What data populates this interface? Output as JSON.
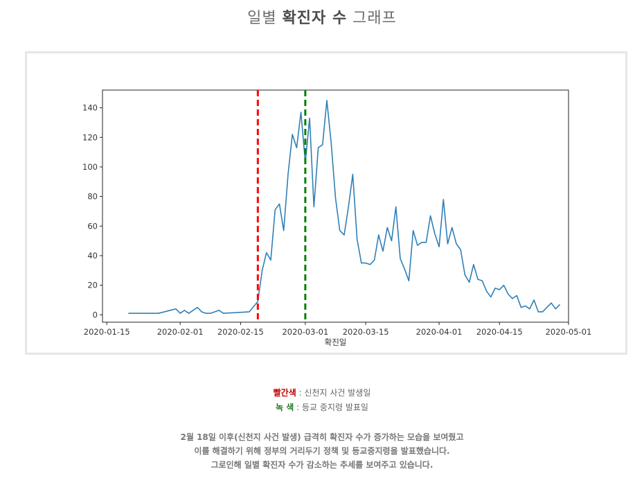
{
  "title": {
    "part1": "일별 ",
    "bold": "확진자 수",
    "part2": " 그래프"
  },
  "legend": {
    "red_label": "빨간색",
    "red_sep": " : ",
    "red_text": "신천지 사건 발생일",
    "green_label": "녹 색",
    "green_sep": " : ",
    "green_text": "등교 중지령 발표일"
  },
  "description": [
    "2월 18일 이후(신천지 사건 발생) 급격히 확진자 수가 증가하는 모습을 보여줬고",
    "이를 해결하기 위해 정부의 거리두기 정책 및 등교중지령을 발표했습니다.",
    "그로인해 일별 확진자 수가 감소하는 추세를 보여주고 있습니다."
  ],
  "chart_data": {
    "type": "line",
    "xlabel": "확진일",
    "ylabel": "",
    "xlim": [
      "2020-01-14",
      "2020-05-01"
    ],
    "ylim": [
      -5,
      152
    ],
    "xticks": [
      "2020-01-15",
      "2020-02-01",
      "2020-02-15",
      "2020-03-01",
      "2020-03-15",
      "2020-04-01",
      "2020-04-15",
      "2020-05-01"
    ],
    "yticks": [
      0,
      20,
      40,
      60,
      80,
      100,
      120,
      140
    ],
    "line_color": "#2e7fb6",
    "grid": false,
    "series": [
      {
        "x": [
          "2020-01-20",
          "2020-01-27",
          "2020-01-31",
          "2020-02-01",
          "2020-02-02",
          "2020-02-03",
          "2020-02-05",
          "2020-02-06",
          "2020-02-07",
          "2020-02-08",
          "2020-02-10",
          "2020-02-11",
          "2020-02-17",
          "2020-02-19",
          "2020-02-20",
          "2020-02-21",
          "2020-02-22",
          "2020-02-23",
          "2020-02-24",
          "2020-02-25",
          "2020-02-26",
          "2020-02-27",
          "2020-02-28",
          "2020-02-29",
          "2020-03-01",
          "2020-03-02",
          "2020-03-03",
          "2020-03-04",
          "2020-03-05",
          "2020-03-06",
          "2020-03-07",
          "2020-03-08",
          "2020-03-09",
          "2020-03-10",
          "2020-03-11",
          "2020-03-12",
          "2020-03-13",
          "2020-03-14",
          "2020-03-15",
          "2020-03-16",
          "2020-03-17",
          "2020-03-18",
          "2020-03-19",
          "2020-03-20",
          "2020-03-21",
          "2020-03-22",
          "2020-03-23",
          "2020-03-24",
          "2020-03-25",
          "2020-03-26",
          "2020-03-27",
          "2020-03-28",
          "2020-03-29",
          "2020-03-30",
          "2020-03-31",
          "2020-04-01",
          "2020-04-02",
          "2020-04-03",
          "2020-04-04",
          "2020-04-05",
          "2020-04-06",
          "2020-04-07",
          "2020-04-08",
          "2020-04-09",
          "2020-04-10",
          "2020-04-11",
          "2020-04-12",
          "2020-04-13",
          "2020-04-14",
          "2020-04-15",
          "2020-04-16",
          "2020-04-17",
          "2020-04-18",
          "2020-04-19",
          "2020-04-20",
          "2020-04-21",
          "2020-04-22",
          "2020-04-23",
          "2020-04-24",
          "2020-04-25",
          "2020-04-26",
          "2020-04-27",
          "2020-04-28",
          "2020-04-29"
        ],
        "y": [
          1,
          1,
          4,
          1,
          3,
          1,
          5,
          2,
          1,
          1,
          3,
          1,
          2,
          9,
          30,
          42,
          37,
          71,
          75,
          57,
          95,
          122,
          113,
          137,
          103,
          133,
          73,
          113,
          115,
          145,
          116,
          79,
          57,
          54,
          73,
          95,
          51,
          35,
          35,
          34,
          37,
          54,
          43,
          59,
          50,
          73,
          38,
          31,
          23,
          57,
          47,
          49,
          49,
          67,
          55,
          46,
          78,
          48,
          59,
          48,
          44,
          27,
          22,
          34,
          24,
          23,
          16,
          12,
          18,
          17,
          20,
          14,
          11,
          13,
          5,
          6,
          4,
          10,
          2,
          2,
          5,
          8,
          4,
          7
        ]
      }
    ],
    "vlines": [
      {
        "x": "2020-02-19",
        "color": "#ff0000"
      },
      {
        "x": "2020-03-01",
        "color": "#008000"
      }
    ]
  }
}
